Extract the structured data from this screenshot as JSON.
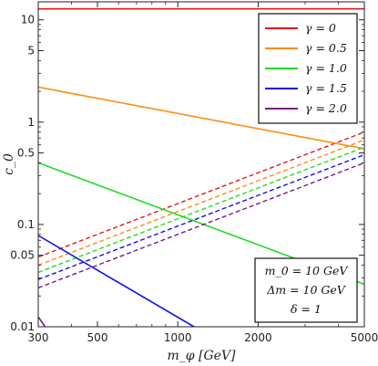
{
  "chart_data": {
    "type": "line",
    "xlabel": "m_φ [GeV]",
    "ylabel": "c_0",
    "xscale": "log",
    "yscale": "log",
    "xlim": [
      300,
      5000
    ],
    "ylim": [
      0.01,
      15
    ],
    "xticks": [
      300,
      500,
      1000,
      2000,
      5000
    ],
    "xtick_labels": [
      "300",
      "500",
      "1000",
      "2000",
      "5000"
    ],
    "yticks": [
      0.01,
      0.05,
      0.1,
      0.5,
      1,
      5,
      10
    ],
    "ytick_labels": [
      "0.01",
      "0.05",
      "0.1",
      "0.5",
      "1",
      "5",
      "10"
    ],
    "grid": false,
    "legend_position": "top-right",
    "series": [
      {
        "name": "γ = 0",
        "color": "#e41a1c",
        "solid": [
          [
            300,
            12.8
          ],
          [
            5000,
            12.8
          ]
        ],
        "dashed": [
          [
            300,
            0.048
          ],
          [
            5000,
            0.8
          ]
        ]
      },
      {
        "name": "γ = 0.5",
        "color": "#ff8c1a",
        "solid": [
          [
            300,
            2.2
          ],
          [
            5000,
            0.55
          ]
        ],
        "dashed": [
          [
            300,
            0.04
          ],
          [
            5000,
            0.67
          ]
        ]
      },
      {
        "name": "γ = 1.0",
        "color": "#22dd22",
        "solid": [
          [
            300,
            0.4
          ],
          [
            5000,
            0.026
          ]
        ],
        "dashed": [
          [
            300,
            0.034
          ],
          [
            5000,
            0.57
          ]
        ]
      },
      {
        "name": "γ = 1.5",
        "color": "#1111ee",
        "solid": [
          [
            300,
            0.078
          ],
          [
            1150,
            0.01
          ]
        ],
        "dashed": [
          [
            300,
            0.029
          ],
          [
            5000,
            0.48
          ]
        ]
      },
      {
        "name": "γ = 2.0",
        "color": "#7a1a85",
        "solid": [
          [
            300,
            0.0125
          ],
          [
            320,
            0.0098
          ]
        ],
        "dashed": [
          [
            300,
            0.024
          ],
          [
            5000,
            0.4
          ]
        ]
      }
    ],
    "annotations": [
      "m_0 = 10 GeV",
      "Δm = 10 GeV",
      "δ = 1"
    ]
  }
}
